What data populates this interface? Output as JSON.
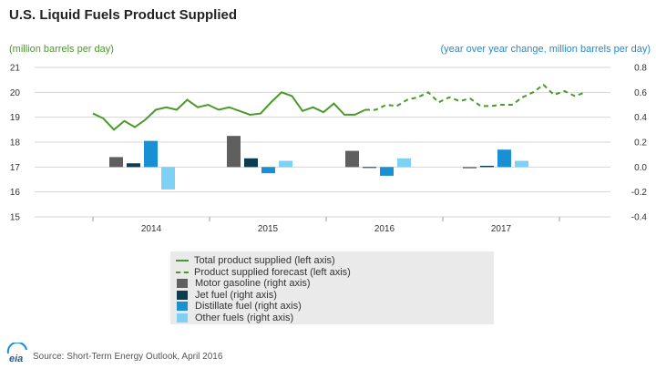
{
  "title": "U.S. Liquid Fuels Product Supplied",
  "left_unit": "(million barrels per day)",
  "right_unit": "(year over year change, million barrels per day)",
  "source": "Source: Short-Term Energy Outlook, April 2016",
  "logo_text": "eia",
  "colors": {
    "total": "#4a9a2a",
    "motor_gasoline": "#5f5f5f",
    "jet_fuel": "#0c3c52",
    "distillate": "#1a90d4",
    "other": "#7fd0f5"
  },
  "legend": [
    {
      "label": "Total product supplied (left axis)",
      "kind": "line"
    },
    {
      "label": "Product supplied forecast (left axis)",
      "kind": "dash"
    },
    {
      "label": "Motor gasoline (right axis)",
      "kind": "box",
      "color": "#5f5f5f"
    },
    {
      "label": "Jet fuel (right axis)",
      "kind": "box",
      "color": "#0c3c52"
    },
    {
      "label": "Distillate fuel (right axis)",
      "kind": "box",
      "color": "#1a90d4"
    },
    {
      "label": "Other fuels (right axis)",
      "kind": "box",
      "color": "#7fd0f5"
    }
  ],
  "chart_data": {
    "type": "bar+line",
    "left_axis": {
      "ylim": [
        15,
        21
      ],
      "ticks": [
        15,
        16,
        17,
        18,
        19,
        20,
        21
      ]
    },
    "right_axis": {
      "ylim": [
        -0.4,
        0.8
      ],
      "ticks": [
        "-0.4",
        "-0.2",
        "0.0",
        "0.2",
        "0.4",
        "0.6",
        "0.8"
      ]
    },
    "x_ticks": [
      "2014",
      "2015",
      "2016",
      "2017"
    ],
    "grid": "horizontal",
    "legend_position": "bottom",
    "line_series": [
      {
        "name": "Total product supplied (left axis)",
        "style": "solid",
        "values": [
          19.15,
          18.95,
          18.5,
          18.85,
          18.6,
          18.9,
          19.3,
          19.4,
          19.3,
          19.7,
          19.4,
          19.5,
          19.3,
          19.4,
          19.25,
          19.1,
          19.15,
          19.6,
          20.0,
          19.85,
          19.25,
          19.4,
          19.2,
          19.55,
          19.1,
          19.1,
          19.3
        ]
      },
      {
        "name": "Product supplied forecast (left axis)",
        "style": "dashed",
        "values": [
          19.3,
          19.5,
          19.45,
          19.7,
          19.8,
          20.0,
          19.6,
          19.8,
          19.65,
          19.75,
          19.45,
          19.45,
          19.5,
          19.5,
          19.8,
          20.0,
          20.3,
          19.9,
          20.05,
          19.85,
          20.0
        ]
      }
    ],
    "bar_series": [
      {
        "name": "Motor gasoline (right axis)",
        "values": [
          0.08,
          0.25,
          0.13,
          -0.01
        ]
      },
      {
        "name": "Jet fuel (right axis)",
        "values": [
          0.03,
          0.07,
          0.0,
          0.01
        ]
      },
      {
        "name": "Distillate fuel (right axis)",
        "values": [
          0.21,
          -0.05,
          -0.07,
          0.14
        ]
      },
      {
        "name": "Other fuels (right axis)",
        "values": [
          -0.18,
          0.05,
          0.07,
          0.05
        ]
      }
    ]
  }
}
